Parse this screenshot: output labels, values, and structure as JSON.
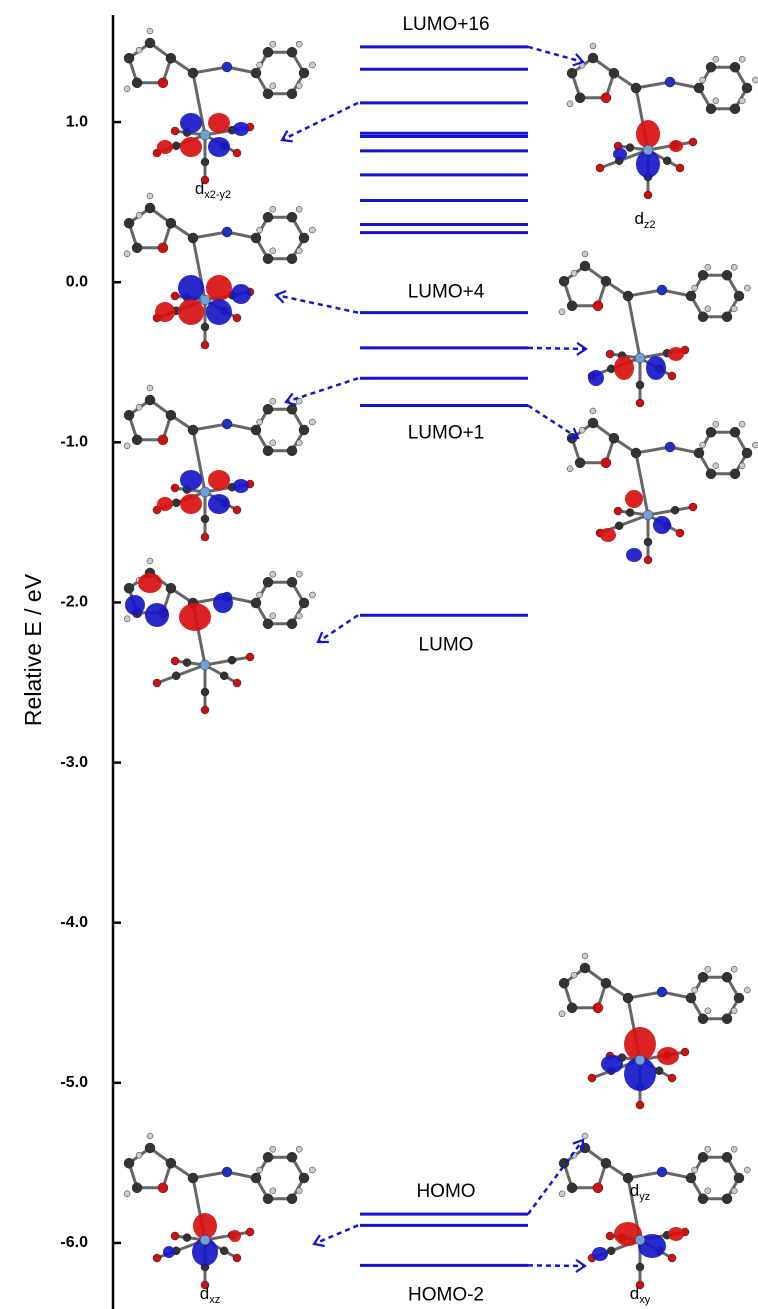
{
  "chart_data": {
    "type": "energy-level",
    "y_label": "Relative E / eV",
    "ylim": [
      -6.4125,
      1.66875
    ],
    "yticks": [
      {
        "value": 1,
        "label": "1.0"
      },
      {
        "value": 0,
        "label": "0.0"
      },
      {
        "value": -1,
        "label": "-1.0"
      },
      {
        "value": -2,
        "label": "-2.0"
      },
      {
        "value": -3,
        "label": "-3.0"
      },
      {
        "value": -4,
        "label": "-4.0"
      },
      {
        "value": -5,
        "label": "-5.0"
      },
      {
        "value": -6,
        "label": "-6.0"
      }
    ],
    "color": "#1414d8",
    "levels": {
      "values": [
        1.47,
        1.33,
        1.12,
        0.93,
        0.91,
        0.82,
        0.67,
        0.51,
        0.36,
        0.31,
        -0.19,
        -0.41,
        -0.6,
        -0.77,
        -2.08,
        -5.82,
        -5.89,
        -6.14
      ],
      "labels": [
        "LUMO+16",
        null,
        null,
        null,
        null,
        null,
        null,
        null,
        null,
        null,
        "LUMO+4",
        null,
        null,
        "LUMO+1",
        "LUMO",
        "HOMO",
        null,
        "HOMO-2"
      ]
    },
    "orbitals": [
      {
        "symbol": "d",
        "sub": "x2-y2"
      },
      {
        "symbol": "d",
        "sub": "z2"
      },
      {
        "symbol": "d",
        "sub": "xz"
      },
      {
        "symbol": "d",
        "sub": "yz"
      },
      {
        "symbol": "d",
        "sub": "xy"
      }
    ]
  }
}
